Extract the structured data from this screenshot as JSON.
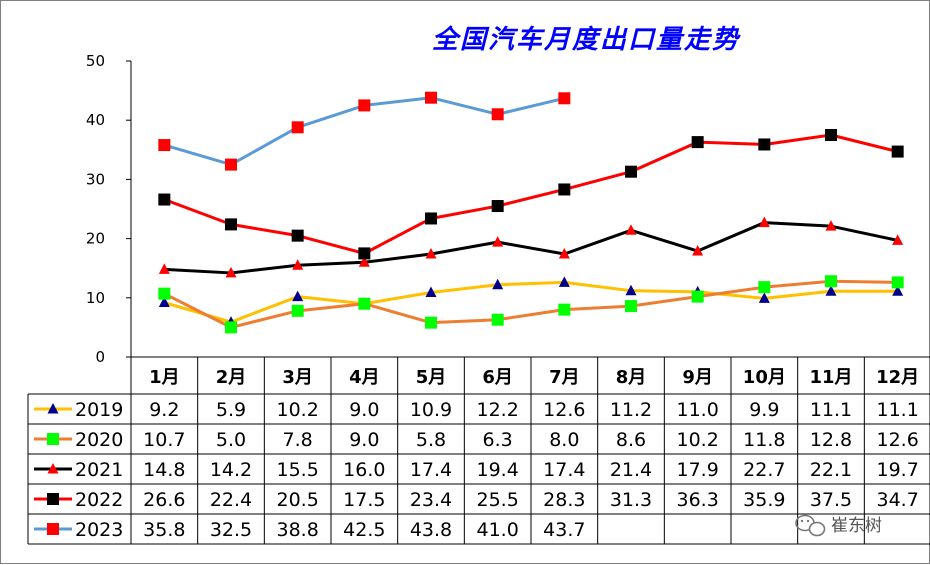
{
  "chart_data": {
    "type": "line",
    "title": "全国汽车月度出口量走势",
    "categories": [
      "1月",
      "2月",
      "3月",
      "4月",
      "5月",
      "6月",
      "7月",
      "8月",
      "9月",
      "10月",
      "11月",
      "12月"
    ],
    "ylim": [
      0,
      50
    ],
    "yticks": [
      0,
      10,
      20,
      30,
      40,
      50
    ],
    "grid": false,
    "legend": "table-left",
    "series": [
      {
        "name": "2019",
        "color": "#ffc000",
        "marker": "triangle",
        "marker_color": "#00008b",
        "values": [
          9.2,
          5.9,
          10.2,
          9.0,
          10.9,
          12.2,
          12.6,
          11.2,
          11.0,
          9.9,
          11.1,
          11.1
        ]
      },
      {
        "name": "2020",
        "color": "#ed7d31",
        "marker": "square",
        "marker_color": "#00ff00",
        "values": [
          10.7,
          5.0,
          7.8,
          9.0,
          5.8,
          6.3,
          8.0,
          8.6,
          10.2,
          11.8,
          12.8,
          12.6
        ]
      },
      {
        "name": "2021",
        "color": "#000000",
        "marker": "triangle",
        "marker_color": "#ff0000",
        "values": [
          14.8,
          14.2,
          15.5,
          16.0,
          17.4,
          19.4,
          17.4,
          21.4,
          17.9,
          22.7,
          22.1,
          19.7
        ]
      },
      {
        "name": "2022",
        "color": "#ff0000",
        "marker": "square",
        "marker_color": "#000000",
        "values": [
          26.6,
          22.4,
          20.5,
          17.5,
          23.4,
          25.5,
          28.3,
          31.3,
          36.3,
          35.9,
          37.5,
          34.7
        ]
      },
      {
        "name": "2023",
        "color": "#5b9bd5",
        "marker": "square",
        "marker_color": "#ff0000",
        "values": [
          35.8,
          32.5,
          38.8,
          42.5,
          43.8,
          41.0,
          43.7,
          null,
          null,
          null,
          null,
          null
        ]
      }
    ],
    "table_labels": [
      [
        "9.2",
        "5.9",
        "10.2",
        "9.0",
        "10.9",
        "12.2",
        "12.6",
        "11.2",
        "11.0",
        "9.9",
        "11.1",
        "11.1"
      ],
      [
        "10.7",
        "5.0",
        "7.8",
        "9.0",
        "5.8",
        "6.3",
        "8.0",
        "8.6",
        "10.2",
        "11.8",
        "12.8",
        "12.6"
      ],
      [
        "14.8",
        "14.2",
        "15.5",
        "16.0",
        "17.4",
        "19.4",
        "17.4",
        "21.4",
        "17.9",
        "22.7",
        "22.1",
        "19.7"
      ],
      [
        "26.6",
        "22.4",
        "20.5",
        "17.5",
        "23.4",
        "25.5",
        "28.3",
        "31.3",
        "36.3",
        "35.9",
        "37.5",
        "34.7"
      ],
      [
        "35.8",
        "32.5",
        "38.8",
        "42.5",
        "43.8",
        "41.0",
        "43.7",
        "",
        "",
        "",
        "",
        ""
      ]
    ]
  },
  "watermark": {
    "text": "崔东树",
    "icon": "wechat-icon"
  }
}
